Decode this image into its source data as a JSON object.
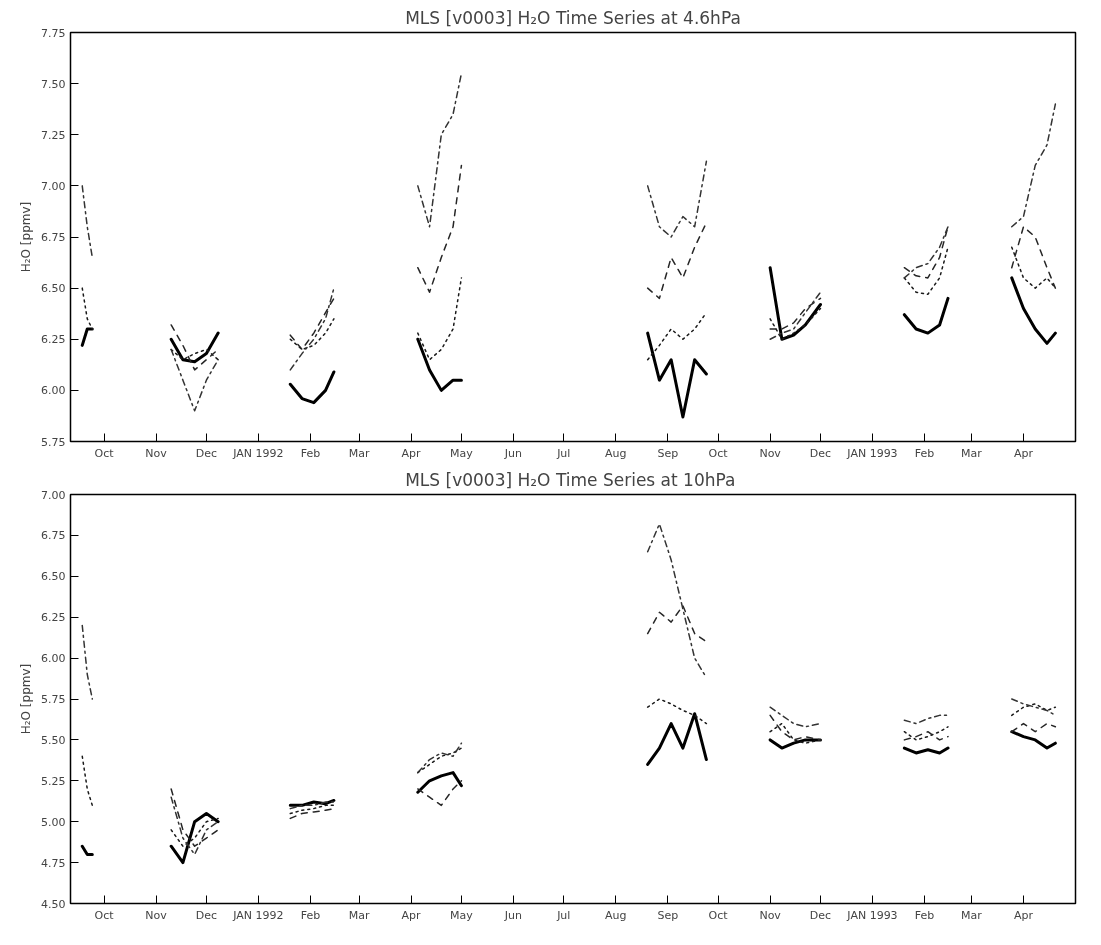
{
  "chart_data": [
    {
      "type": "line",
      "title": "MLS [v0003] H₂O Time Series at 4.6hPa",
      "ylabel": "H₂O [ppmv]",
      "grid": false,
      "x": [
        "1991-09-18",
        "1991-09-21",
        "1991-09-24",
        "1991-10-15",
        "1991-11-10",
        "1991-11-17",
        "1991-11-24",
        "1991-12-01",
        "1991-12-08",
        "1991-12-30",
        "1992-01-20",
        "1992-01-27",
        "1992-02-03",
        "1992-02-10",
        "1992-02-15",
        "1992-03-10",
        "1992-04-05",
        "1992-04-12",
        "1992-04-19",
        "1992-04-26",
        "1992-05-01",
        "1992-06-15",
        "1992-08-20",
        "1992-08-27",
        "1992-09-03",
        "1992-09-10",
        "1992-09-17",
        "1992-09-24",
        "1992-10-15",
        "1992-11-01",
        "1992-11-08",
        "1992-11-15",
        "1992-11-22",
        "1992-12-01",
        "1992-12-30",
        "1993-01-20",
        "1993-01-27",
        "1993-02-03",
        "1993-02-10",
        "1993-02-15",
        "1993-03-10",
        "1993-03-25",
        "1993-04-01",
        "1993-04-08",
        "1993-04-15",
        "1993-04-20"
      ],
      "xlim": [
        "1991-09-11",
        "1993-05-02"
      ],
      "xticks": [
        {
          "value": "1991-10-01",
          "label": "Oct"
        },
        {
          "value": "1991-11-01",
          "label": "Nov"
        },
        {
          "value": "1991-12-01",
          "label": "Dec"
        },
        {
          "value": "1992-01-01",
          "label": "JAN 1992"
        },
        {
          "value": "1992-02-01",
          "label": "Feb"
        },
        {
          "value": "1992-03-01",
          "label": "Mar"
        },
        {
          "value": "1992-04-01",
          "label": "Apr"
        },
        {
          "value": "1992-05-01",
          "label": "May"
        },
        {
          "value": "1992-06-01",
          "label": "Jun"
        },
        {
          "value": "1992-07-01",
          "label": "Jul"
        },
        {
          "value": "1992-08-01",
          "label": "Aug"
        },
        {
          "value": "1992-09-01",
          "label": "Sep"
        },
        {
          "value": "1992-10-01",
          "label": "Oct"
        },
        {
          "value": "1992-11-01",
          "label": "Nov"
        },
        {
          "value": "1992-12-01",
          "label": "Dec"
        },
        {
          "value": "1993-01-01",
          "label": "JAN 1993"
        },
        {
          "value": "1993-02-01",
          "label": "Feb"
        },
        {
          "value": "1993-03-01",
          "label": "Mar"
        },
        {
          "value": "1993-04-01",
          "label": "Apr"
        }
      ],
      "ylim": [
        5.75,
        7.75
      ],
      "yticks": [
        {
          "value": 5.75,
          "label": "5.75"
        },
        {
          "value": 6.0,
          "label": "6.00"
        },
        {
          "value": 6.25,
          "label": "6.25"
        },
        {
          "value": 6.5,
          "label": "6.50"
        },
        {
          "value": 6.75,
          "label": "6.75"
        },
        {
          "value": 7.0,
          "label": "7.00"
        },
        {
          "value": 7.25,
          "label": "7.25"
        },
        {
          "value": 7.5,
          "label": "7.50"
        },
        {
          "value": 7.75,
          "label": "7.75"
        }
      ],
      "series": [
        {
          "color": "#000000",
          "line_style": "solid",
          "values": [
            6.22,
            6.3,
            6.3,
            null,
            6.25,
            6.15,
            6.14,
            6.18,
            6.28,
            null,
            6.03,
            5.96,
            5.94,
            6.0,
            6.09,
            null,
            6.25,
            6.1,
            6.0,
            6.05,
            6.05,
            null,
            6.28,
            6.05,
            6.15,
            5.87,
            6.15,
            6.08,
            null,
            6.6,
            6.25,
            6.27,
            6.32,
            6.42,
            null,
            6.37,
            6.3,
            6.28,
            6.32,
            6.45,
            null,
            6.55,
            6.4,
            6.3,
            6.23,
            6.28
          ]
        },
        {
          "color": "#1a1a1a",
          "line_style": "dotted",
          "values": [
            6.5,
            6.35,
            6.3,
            null,
            6.2,
            6.15,
            6.18,
            6.2,
            6.15,
            null,
            6.25,
            6.2,
            6.22,
            6.28,
            6.35,
            null,
            6.28,
            6.15,
            6.2,
            6.3,
            6.55,
            null,
            6.15,
            6.22,
            6.3,
            6.25,
            6.3,
            6.38,
            null,
            6.35,
            6.25,
            6.28,
            6.32,
            6.4,
            null,
            6.55,
            6.48,
            6.47,
            6.55,
            6.7,
            null,
            6.7,
            6.55,
            6.5,
            6.55,
            6.5
          ]
        },
        {
          "color": "#262626",
          "line_style": "dashed",
          "values": [
            null,
            null,
            null,
            null,
            6.32,
            6.22,
            6.1,
            6.15,
            6.2,
            null,
            6.27,
            6.2,
            6.28,
            6.38,
            6.45,
            null,
            6.6,
            6.48,
            6.65,
            6.8,
            7.1,
            null,
            6.5,
            6.45,
            6.65,
            6.55,
            6.7,
            6.82,
            null,
            6.3,
            6.3,
            6.33,
            6.4,
            6.45,
            null,
            6.6,
            6.56,
            6.55,
            6.65,
            6.8,
            null,
            6.6,
            6.8,
            6.75,
            6.6,
            6.5
          ]
        },
        {
          "color": "#333333",
          "line_style": "dashdot",
          "values": [
            7.0,
            6.8,
            6.65,
            null,
            6.2,
            6.05,
            5.9,
            6.05,
            6.15,
            null,
            6.1,
            6.18,
            6.25,
            6.35,
            6.5,
            null,
            7.0,
            6.8,
            7.25,
            7.35,
            7.55,
            null,
            7.0,
            6.8,
            6.75,
            6.85,
            6.8,
            7.12,
            null,
            6.25,
            6.28,
            6.3,
            6.38,
            6.48,
            null,
            6.55,
            6.6,
            6.62,
            6.7,
            6.8,
            null,
            6.8,
            6.85,
            7.1,
            7.2,
            7.4
          ]
        }
      ]
    },
    {
      "type": "line",
      "title": "MLS [v0003]  H₂O Time Series at 10hPa",
      "ylabel": "H₂O [ppmv]",
      "grid": false,
      "x": [
        "1991-09-18",
        "1991-09-21",
        "1991-09-24",
        "1991-10-15",
        "1991-11-10",
        "1991-11-17",
        "1991-11-24",
        "1991-12-01",
        "1991-12-08",
        "1991-12-30",
        "1992-01-20",
        "1992-01-27",
        "1992-02-03",
        "1992-02-10",
        "1992-02-15",
        "1992-03-10",
        "1992-04-05",
        "1992-04-12",
        "1992-04-19",
        "1992-04-26",
        "1992-05-01",
        "1992-06-15",
        "1992-08-20",
        "1992-08-27",
        "1992-09-03",
        "1992-09-10",
        "1992-09-17",
        "1992-09-24",
        "1992-10-15",
        "1992-11-01",
        "1992-11-08",
        "1992-11-15",
        "1992-11-22",
        "1992-12-01",
        "1992-12-30",
        "1993-01-20",
        "1993-01-27",
        "1993-02-03",
        "1993-02-10",
        "1993-02-15",
        "1993-03-10",
        "1993-03-25",
        "1993-04-01",
        "1993-04-08",
        "1993-04-15",
        "1993-04-20"
      ],
      "xlim": [
        "1991-09-11",
        "1993-05-02"
      ],
      "xticks": [
        {
          "value": "1991-10-01",
          "label": "Oct"
        },
        {
          "value": "1991-11-01",
          "label": "Nov"
        },
        {
          "value": "1991-12-01",
          "label": "Dec"
        },
        {
          "value": "1992-01-01",
          "label": "JAN 1992"
        },
        {
          "value": "1992-02-01",
          "label": "Feb"
        },
        {
          "value": "1992-03-01",
          "label": "Mar"
        },
        {
          "value": "1992-04-01",
          "label": "Apr"
        },
        {
          "value": "1992-05-01",
          "label": "May"
        },
        {
          "value": "1992-06-01",
          "label": "Jun"
        },
        {
          "value": "1992-07-01",
          "label": "Jul"
        },
        {
          "value": "1992-08-01",
          "label": "Aug"
        },
        {
          "value": "1992-09-01",
          "label": "Sep"
        },
        {
          "value": "1992-10-01",
          "label": "Oct"
        },
        {
          "value": "1992-11-01",
          "label": "Nov"
        },
        {
          "value": "1992-12-01",
          "label": "Dec"
        },
        {
          "value": "1993-01-01",
          "label": "JAN 1993"
        },
        {
          "value": "1993-02-01",
          "label": "Feb"
        },
        {
          "value": "1993-03-01",
          "label": "Mar"
        },
        {
          "value": "1993-04-01",
          "label": "Apr"
        }
      ],
      "ylim": [
        4.5,
        7.0
      ],
      "yticks": [
        {
          "value": 4.5,
          "label": "4.50"
        },
        {
          "value": 4.75,
          "label": "4.75"
        },
        {
          "value": 5.0,
          "label": "5.00"
        },
        {
          "value": 5.25,
          "label": "5.25"
        },
        {
          "value": 5.5,
          "label": "5.50"
        },
        {
          "value": 5.75,
          "label": "5.75"
        },
        {
          "value": 6.0,
          "label": "6.00"
        },
        {
          "value": 6.25,
          "label": "6.25"
        },
        {
          "value": 6.5,
          "label": "6.50"
        },
        {
          "value": 6.75,
          "label": "6.75"
        },
        {
          "value": 7.0,
          "label": "7.00"
        }
      ],
      "series": [
        {
          "color": "#000000",
          "line_style": "solid",
          "values": [
            4.85,
            4.8,
            4.8,
            null,
            4.85,
            4.75,
            5.0,
            5.05,
            5.0,
            null,
            5.1,
            5.1,
            5.12,
            5.11,
            5.13,
            null,
            5.18,
            5.25,
            5.28,
            5.3,
            5.22,
            null,
            5.35,
            5.45,
            5.6,
            5.45,
            5.66,
            5.38,
            null,
            5.5,
            5.45,
            5.48,
            5.5,
            5.5,
            null,
            5.45,
            5.42,
            5.44,
            5.42,
            5.45,
            null,
            5.55,
            5.52,
            5.5,
            5.45,
            5.48
          ]
        },
        {
          "color": "#1a1a1a",
          "line_style": "dotted",
          "values": [
            5.4,
            5.2,
            5.1,
            null,
            4.95,
            4.85,
            4.9,
            5.0,
            5.02,
            null,
            5.05,
            5.07,
            5.08,
            5.1,
            5.1,
            null,
            5.3,
            5.35,
            5.4,
            5.42,
            5.45,
            null,
            5.7,
            5.75,
            5.72,
            5.68,
            5.65,
            5.6,
            null,
            5.55,
            5.6,
            5.5,
            5.48,
            5.5,
            null,
            5.55,
            5.5,
            5.52,
            5.55,
            5.58,
            null,
            5.65,
            5.7,
            5.72,
            5.68,
            5.7
          ]
        },
        {
          "color": "#262626",
          "line_style": "dashed",
          "values": [
            null,
            null,
            null,
            null,
            5.2,
            4.95,
            4.85,
            4.9,
            4.95,
            null,
            5.02,
            5.05,
            5.06,
            5.07,
            5.08,
            null,
            5.2,
            5.15,
            5.1,
            5.2,
            5.25,
            null,
            6.15,
            6.28,
            6.22,
            6.32,
            6.15,
            6.1,
            null,
            5.65,
            5.55,
            5.5,
            5.52,
            5.5,
            null,
            5.5,
            5.52,
            5.55,
            5.5,
            5.52,
            null,
            5.55,
            5.6,
            5.55,
            5.6,
            5.58
          ]
        },
        {
          "color": "#333333",
          "line_style": "dashdot",
          "values": [
            6.2,
            5.9,
            5.75,
            null,
            5.15,
            4.9,
            4.8,
            4.95,
            5.0,
            null,
            5.08,
            5.1,
            5.1,
            5.12,
            5.12,
            null,
            5.3,
            5.38,
            5.42,
            5.4,
            5.48,
            null,
            6.65,
            6.82,
            6.6,
            6.3,
            6.0,
            5.88,
            null,
            5.7,
            5.65,
            5.6,
            5.58,
            5.6,
            null,
            5.62,
            5.6,
            5.63,
            5.65,
            5.65,
            null,
            5.75,
            5.72,
            5.7,
            5.68,
            5.65
          ]
        }
      ]
    }
  ]
}
